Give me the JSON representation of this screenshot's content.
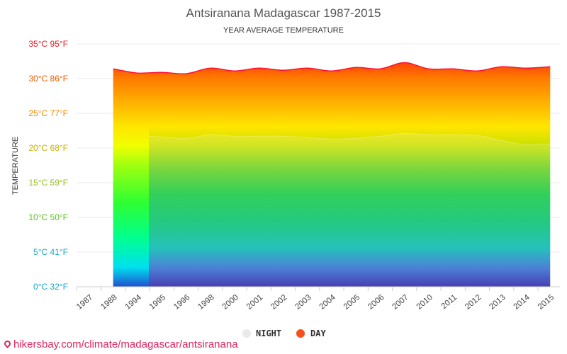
{
  "chart_data": {
    "type": "area",
    "title": "Antsiranana Madagascar 1987-2015",
    "subtitle": "YEAR AVERAGE TEMPERATURE",
    "ylabel": "TEMPERATURE",
    "ylim": [
      0,
      35
    ],
    "yticks": [
      {
        "value": 0,
        "label": "0°C 32°F",
        "color": "#1aa7c9"
      },
      {
        "value": 5,
        "label": "5°C 41°F",
        "color": "#1aa7c9"
      },
      {
        "value": 10,
        "label": "10°C 50°F",
        "color": "#5cbf1e"
      },
      {
        "value": 15,
        "label": "15°C 59°F",
        "color": "#8dc21f"
      },
      {
        "value": 20,
        "label": "20°C 68°F",
        "color": "#d0b000"
      },
      {
        "value": 25,
        "label": "25°C 77°F",
        "color": "#f08c00"
      },
      {
        "value": 30,
        "label": "30°C 86°F",
        "color": "#f05a00"
      },
      {
        "value": 35,
        "label": "35°C 95°F",
        "color": "#ee1c25"
      }
    ],
    "categories": [
      "1987",
      "1988",
      "1994",
      "1995",
      "1996",
      "1998",
      "2000",
      "2001",
      "2002",
      "2003",
      "2004",
      "2005",
      "2006",
      "2007",
      "2010",
      "2011",
      "2012",
      "2013",
      "2014",
      "2015"
    ],
    "series": [
      {
        "name": "DAY",
        "color": "#f4511e",
        "values": [
          null,
          31.4,
          30.8,
          30.9,
          30.7,
          31.5,
          31.1,
          31.5,
          31.2,
          31.5,
          31.1,
          31.6,
          31.4,
          32.3,
          31.4,
          31.4,
          31.1,
          31.7,
          31.5,
          31.7
        ]
      },
      {
        "name": "NIGHT",
        "color": "#e6e6e6",
        "values": [
          null,
          null,
          21.7,
          21.6,
          21.4,
          21.9,
          21.7,
          21.7,
          21.7,
          21.5,
          21.3,
          21.4,
          21.7,
          22.1,
          21.9,
          21.9,
          21.8,
          21.1,
          20.5,
          20.6
        ]
      }
    ],
    "legend": {
      "position": "bottom",
      "items": [
        {
          "label": "NIGHT",
          "color": "#e6e6e6"
        },
        {
          "label": "DAY",
          "color": "#f4511e"
        }
      ]
    }
  },
  "source": {
    "text": "hikersbay.com/climate/madagascar/antsiranana"
  }
}
